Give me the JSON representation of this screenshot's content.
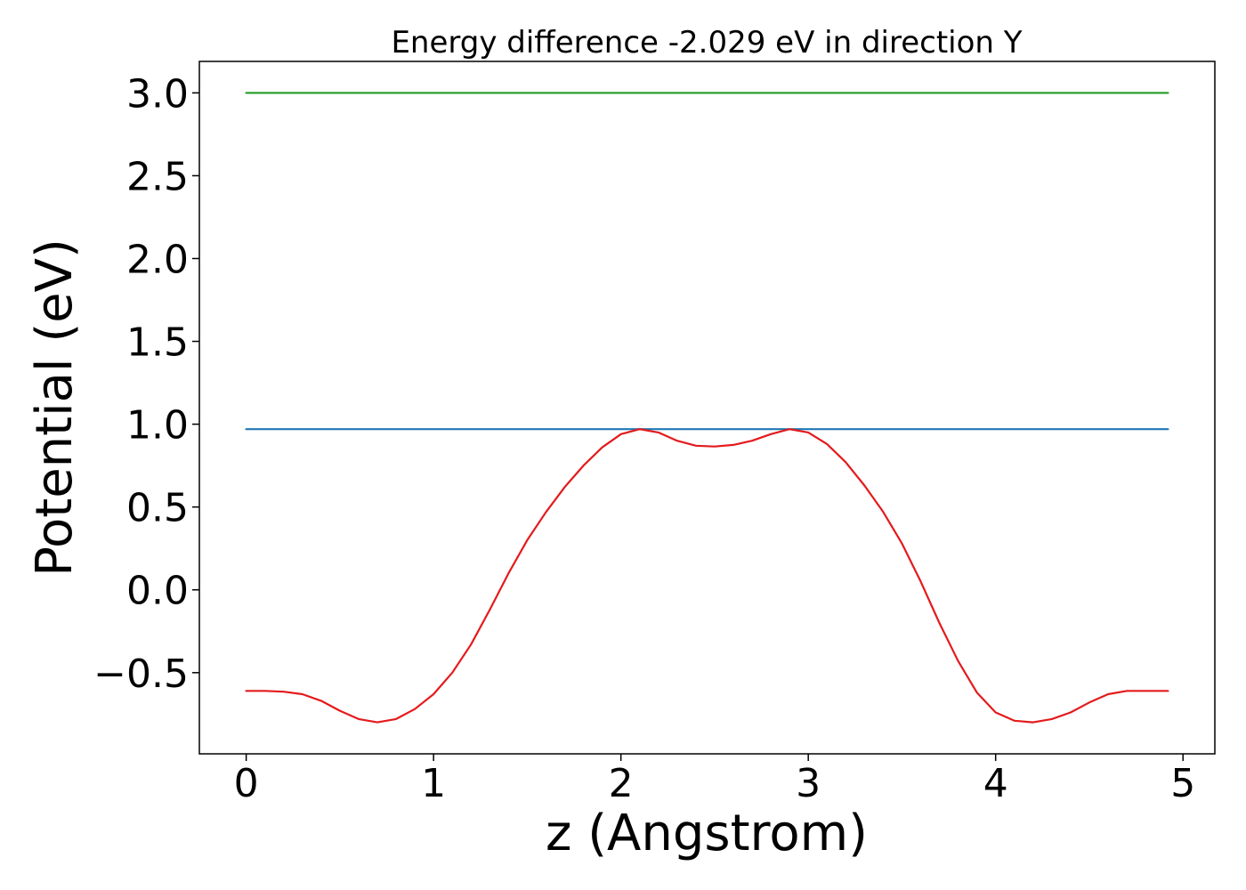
{
  "chart_data": {
    "type": "line",
    "title": "Energy difference -2.029 eV in direction Y",
    "xlabel": "z (Angstrom)",
    "ylabel": "Potential (eV)",
    "xlim": [
      -0.25,
      5.17
    ],
    "ylim": [
      -0.99,
      3.19
    ],
    "xticks": [
      0,
      1,
      2,
      3,
      4,
      5
    ],
    "xtick_labels": [
      "0",
      "1",
      "2",
      "3",
      "4",
      "5"
    ],
    "yticks": [
      -0.5,
      0.0,
      0.5,
      1.0,
      1.5,
      2.0,
      2.5,
      3.0
    ],
    "ytick_labels": [
      "−0.5",
      "0.0",
      "0.5",
      "1.0",
      "1.5",
      "2.0",
      "2.5",
      "3.0"
    ],
    "grid": false,
    "series": [
      {
        "color": "#2ca02c",
        "x": [
          0,
          4.92
        ],
        "y": [
          3.0,
          3.0
        ]
      },
      {
        "color": "#1f77b4",
        "x": [
          0,
          4.92
        ],
        "y": [
          0.97,
          0.97
        ]
      },
      {
        "color": "#e41a1c",
        "x": [
          0.0,
          0.1,
          0.2,
          0.3,
          0.4,
          0.5,
          0.6,
          0.7,
          0.8,
          0.9,
          1.0,
          1.1,
          1.2,
          1.3,
          1.4,
          1.5,
          1.6,
          1.7,
          1.8,
          1.9,
          2.0,
          2.1,
          2.2,
          2.3,
          2.4,
          2.5,
          2.6,
          2.7,
          2.8,
          2.9,
          3.0,
          3.1,
          3.2,
          3.3,
          3.4,
          3.5,
          3.6,
          3.7,
          3.8,
          3.9,
          4.0,
          4.1,
          4.2,
          4.3,
          4.4,
          4.5,
          4.6,
          4.7,
          4.8,
          4.9,
          4.92
        ],
        "y": [
          -0.61,
          -0.61,
          -0.615,
          -0.63,
          -0.67,
          -0.73,
          -0.78,
          -0.8,
          -0.78,
          -0.72,
          -0.63,
          -0.5,
          -0.33,
          -0.12,
          0.1,
          0.3,
          0.47,
          0.62,
          0.75,
          0.86,
          0.94,
          0.97,
          0.95,
          0.9,
          0.87,
          0.865,
          0.875,
          0.9,
          0.94,
          0.97,
          0.95,
          0.88,
          0.77,
          0.63,
          0.47,
          0.28,
          0.05,
          -0.2,
          -0.43,
          -0.62,
          -0.74,
          -0.79,
          -0.8,
          -0.78,
          -0.74,
          -0.68,
          -0.63,
          -0.61,
          -0.61,
          -0.61,
          -0.61
        ]
      }
    ]
  }
}
